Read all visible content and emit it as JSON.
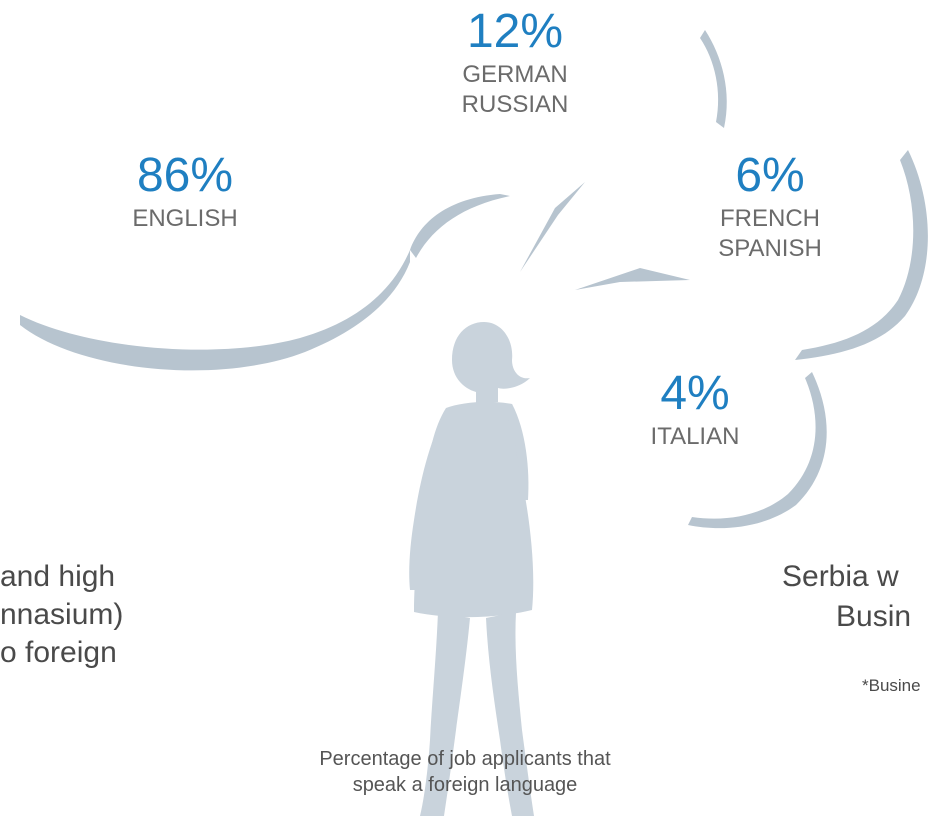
{
  "colors": {
    "accent": "#1f7fc1",
    "bubble_shadow": "#b7c4cf",
    "silhouette": "#c9d3dc",
    "text": "#4a4a4a"
  },
  "bubbles": [
    {
      "percent": "86%",
      "languages": [
        "ENGLISH"
      ]
    },
    {
      "percent": "12%",
      "languages": [
        "GERMAN",
        "RUSSIAN"
      ]
    },
    {
      "percent": "6%",
      "languages": [
        "FRENCH",
        "SPANISH"
      ]
    },
    {
      "percent": "4%",
      "languages": [
        "ITALIAN"
      ]
    }
  ],
  "left_text": [
    "and high",
    "nnasium)",
    "o foreign"
  ],
  "right_text": [
    "Serbia w",
    "Busin"
  ],
  "footnote": "*Busine",
  "caption": [
    "Percentage of job applicants that",
    "speak a foreign language"
  ],
  "figure_icon": "woman-silhouette-icon"
}
